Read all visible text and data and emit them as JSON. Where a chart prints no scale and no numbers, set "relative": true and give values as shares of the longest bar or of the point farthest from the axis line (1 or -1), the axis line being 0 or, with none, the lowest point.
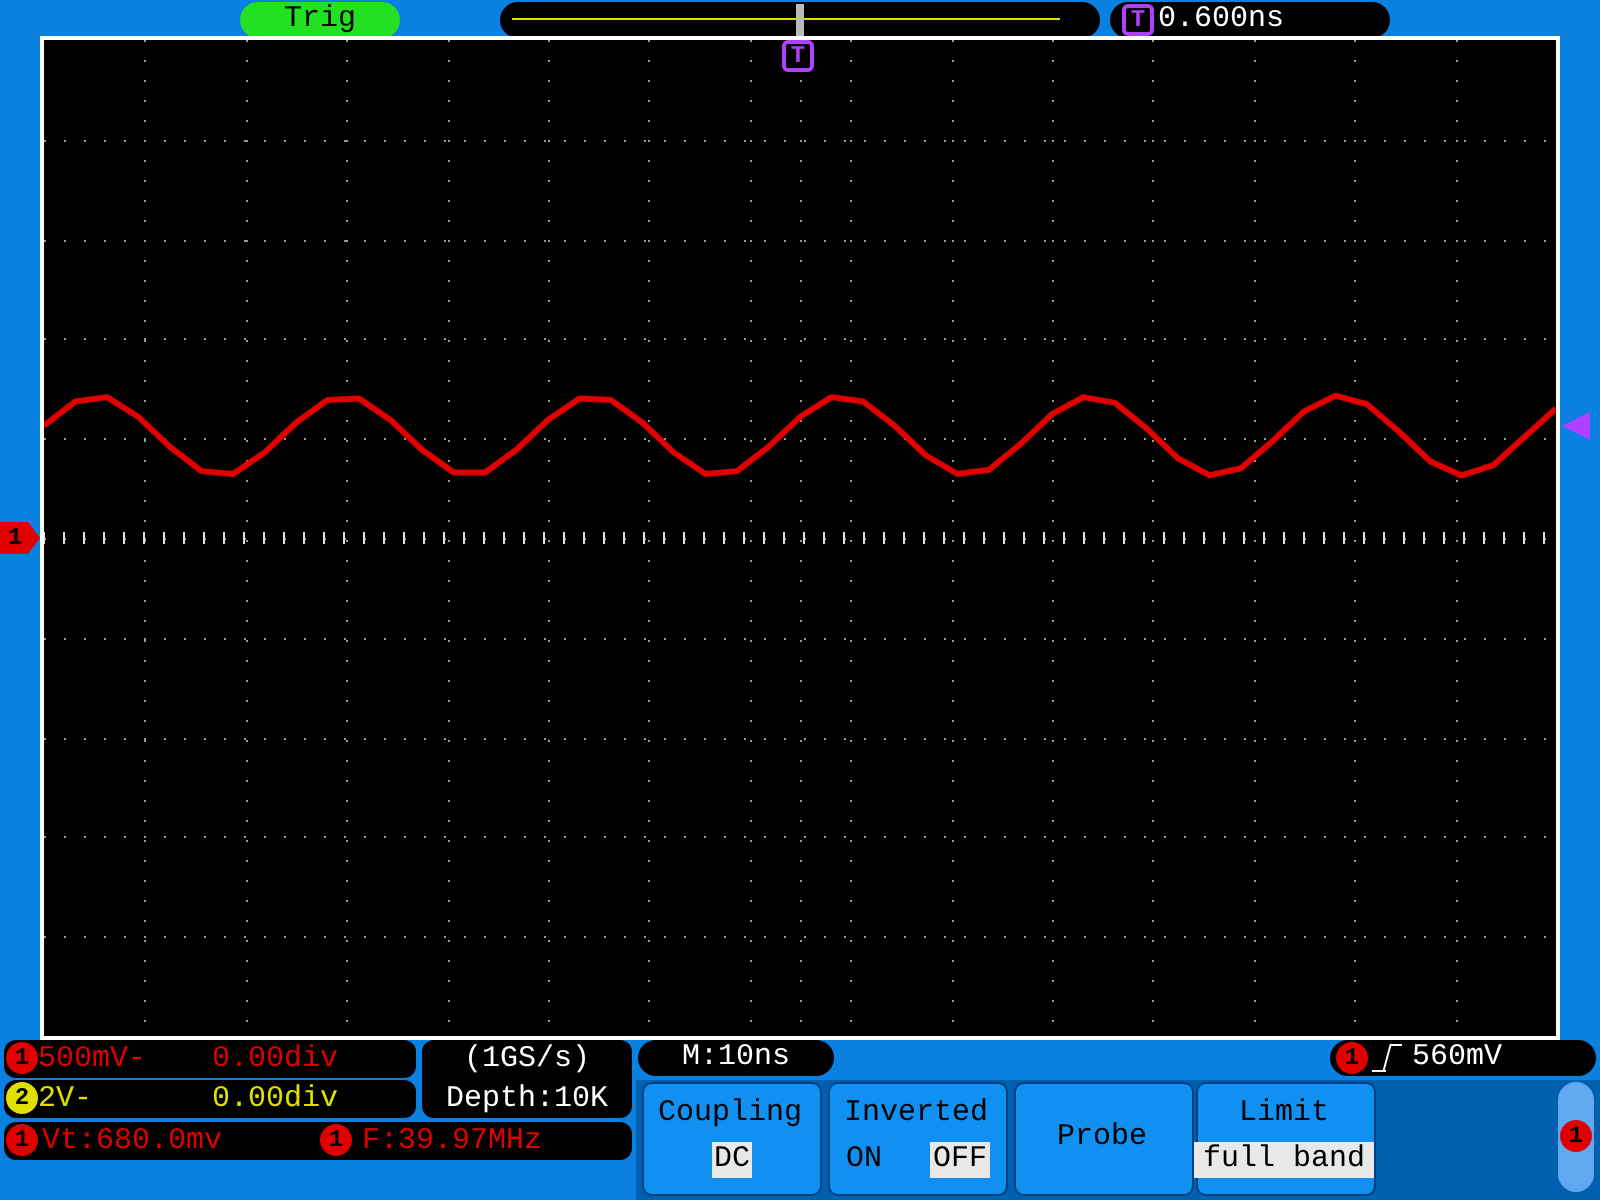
{
  "chart_data": {
    "type": "line",
    "relative": true,
    "grid": true,
    "legend": false,
    "marker": "none",
    "line_style": "solid",
    "categories": [
      null,
      null,
      null,
      null,
      null,
      null,
      null,
      null,
      null,
      null,
      null,
      null,
      null,
      null,
      null,
      null,
      null,
      null,
      null,
      null,
      null,
      null,
      null,
      null,
      null,
      null,
      null,
      null,
      null,
      null,
      null,
      null,
      null,
      null,
      null,
      null,
      null,
      null,
      null,
      null,
      null,
      null,
      null,
      null,
      null,
      null,
      null,
      null,
      null
    ],
    "series": [
      {
        "color": "#e00000",
        "values": [
          0.79,
          0.96,
          0.99,
          0.85,
          0.64,
          0.47,
          0.45,
          0.6,
          0.81,
          0.97,
          0.98,
          0.83,
          0.62,
          0.46,
          0.46,
          0.62,
          0.83,
          0.98,
          0.97,
          0.81,
          0.6,
          0.45,
          0.47,
          0.64,
          0.85,
          0.99,
          0.96,
          0.79,
          0.58,
          0.45,
          0.48,
          0.66,
          0.87,
          0.99,
          0.95,
          0.77,
          0.56,
          0.44,
          0.49,
          0.68,
          0.89,
          1.0,
          0.94,
          0.75,
          0.54,
          0.44,
          0.51,
          0.71,
          0.91
        ]
      }
    ],
    "annotations": [
      "Trig",
      "0.600ns",
      "500mV-",
      "0.00div",
      "2V-",
      "0.00div",
      "(1GS/s)",
      "Depth:10K",
      "Vt:680.0mv",
      "F:39.97MHz",
      "M:10ns",
      "560mV",
      "Coupling",
      "DC",
      "Inverted",
      "ON",
      "OFF",
      "Probe",
      "Limit",
      "full band",
      "1",
      "2",
      "T"
    ]
  }
}
